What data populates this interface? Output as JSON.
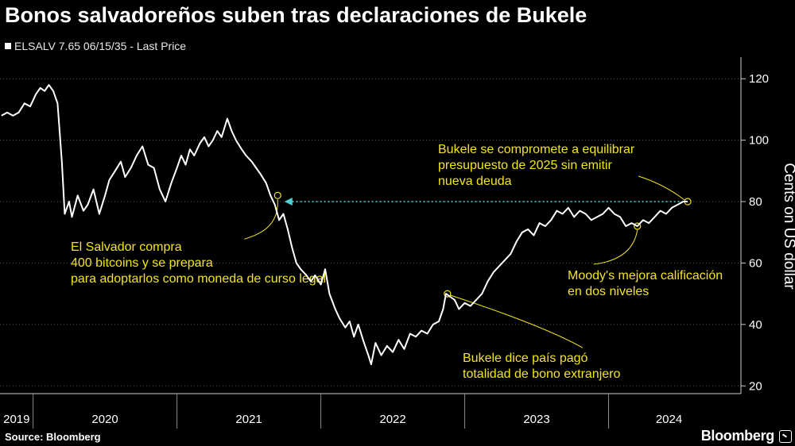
{
  "title": "Bonos salvadoreños suben tras declaraciones de Bukele",
  "legend": "ELSALV 7.65 06/15/35 - Last Price",
  "source": "Source: Bloomberg",
  "brand": "Bloomberg",
  "chart_data": {
    "type": "line",
    "ylabel": "Cents on US dollar",
    "ylim": [
      18,
      126
    ],
    "yticks": [
      20,
      40,
      60,
      80,
      100,
      120
    ],
    "xlabels": [
      "2019",
      "2020",
      "2021",
      "2022",
      "2023",
      "2024"
    ],
    "grid": "horizontal dotted",
    "series": [
      {
        "name": "ELSALV 7.65 06/15/35",
        "color": "#ffffff",
        "values": [
          [
            2019.78,
            108
          ],
          [
            2019.82,
            109
          ],
          [
            2019.86,
            108
          ],
          [
            2019.9,
            109
          ],
          [
            2019.94,
            112
          ],
          [
            2019.98,
            111
          ],
          [
            2020.02,
            115
          ],
          [
            2020.05,
            117
          ],
          [
            2020.08,
            116
          ],
          [
            2020.11,
            118
          ],
          [
            2020.14,
            116
          ],
          [
            2020.17,
            112
          ],
          [
            2020.2,
            93
          ],
          [
            2020.22,
            76
          ],
          [
            2020.25,
            80
          ],
          [
            2020.27,
            75
          ],
          [
            2020.31,
            82
          ],
          [
            2020.35,
            77
          ],
          [
            2020.38,
            79
          ],
          [
            2020.42,
            84
          ],
          [
            2020.46,
            76
          ],
          [
            2020.5,
            82
          ],
          [
            2020.53,
            87
          ],
          [
            2020.57,
            90
          ],
          [
            2020.61,
            93
          ],
          [
            2020.64,
            88
          ],
          [
            2020.68,
            91
          ],
          [
            2020.72,
            95
          ],
          [
            2020.76,
            98
          ],
          [
            2020.8,
            92
          ],
          [
            2020.84,
            91
          ],
          [
            2020.88,
            84
          ],
          [
            2020.92,
            80
          ],
          [
            2020.96,
            86
          ],
          [
            2021.0,
            91
          ],
          [
            2021.03,
            95
          ],
          [
            2021.06,
            92
          ],
          [
            2021.09,
            97
          ],
          [
            2021.12,
            95
          ],
          [
            2021.16,
            99
          ],
          [
            2021.19,
            101
          ],
          [
            2021.22,
            98
          ],
          [
            2021.25,
            100
          ],
          [
            2021.28,
            103
          ],
          [
            2021.31,
            101
          ],
          [
            2021.35,
            107
          ],
          [
            2021.38,
            103
          ],
          [
            2021.41,
            100
          ],
          [
            2021.45,
            97
          ],
          [
            2021.48,
            95
          ],
          [
            2021.52,
            93
          ],
          [
            2021.55,
            91
          ],
          [
            2021.58,
            89
          ],
          [
            2021.62,
            86
          ],
          [
            2021.65,
            82
          ],
          [
            2021.68,
            79
          ],
          [
            2021.71,
            74
          ],
          [
            2021.74,
            76
          ],
          [
            2021.77,
            71
          ],
          [
            2021.8,
            65
          ],
          [
            2021.83,
            60
          ],
          [
            2021.86,
            58
          ],
          [
            2021.9,
            56
          ],
          [
            2021.93,
            54
          ],
          [
            2021.96,
            56
          ],
          [
            2022.0,
            53
          ],
          [
            2022.03,
            58
          ],
          [
            2022.06,
            50
          ],
          [
            2022.1,
            45
          ],
          [
            2022.13,
            42
          ],
          [
            2022.17,
            39
          ],
          [
            2022.2,
            41
          ],
          [
            2022.23,
            36
          ],
          [
            2022.26,
            40
          ],
          [
            2022.3,
            34
          ],
          [
            2022.33,
            30
          ],
          [
            2022.35,
            27
          ],
          [
            2022.38,
            34
          ],
          [
            2022.42,
            30
          ],
          [
            2022.46,
            33
          ],
          [
            2022.5,
            31
          ],
          [
            2022.54,
            35
          ],
          [
            2022.58,
            32
          ],
          [
            2022.62,
            37
          ],
          [
            2022.66,
            36
          ],
          [
            2022.7,
            38
          ],
          [
            2022.74,
            37
          ],
          [
            2022.78,
            40
          ],
          [
            2022.82,
            41
          ],
          [
            2022.85,
            45
          ],
          [
            2022.87,
            50
          ],
          [
            2022.9,
            49
          ],
          [
            2022.93,
            48
          ],
          [
            2022.96,
            45
          ],
          [
            2023.0,
            47
          ],
          [
            2023.04,
            46
          ],
          [
            2023.08,
            48
          ],
          [
            2023.12,
            50
          ],
          [
            2023.16,
            54
          ],
          [
            2023.2,
            57
          ],
          [
            2023.24,
            59
          ],
          [
            2023.28,
            61
          ],
          [
            2023.32,
            63
          ],
          [
            2023.36,
            67
          ],
          [
            2023.4,
            70
          ],
          [
            2023.44,
            71
          ],
          [
            2023.48,
            69
          ],
          [
            2023.52,
            73
          ],
          [
            2023.56,
            72
          ],
          [
            2023.6,
            74
          ],
          [
            2023.64,
            77
          ],
          [
            2023.68,
            76
          ],
          [
            2023.72,
            78
          ],
          [
            2023.76,
            75
          ],
          [
            2023.8,
            77
          ],
          [
            2023.84,
            76
          ],
          [
            2023.88,
            74
          ],
          [
            2023.92,
            75
          ],
          [
            2023.96,
            76
          ],
          [
            2024.0,
            78
          ],
          [
            2024.04,
            76
          ],
          [
            2024.08,
            75
          ],
          [
            2024.12,
            72
          ],
          [
            2024.16,
            73
          ],
          [
            2024.2,
            72
          ],
          [
            2024.24,
            74
          ],
          [
            2024.28,
            73
          ],
          [
            2024.32,
            75
          ],
          [
            2024.36,
            77
          ],
          [
            2024.4,
            76
          ],
          [
            2024.44,
            78
          ],
          [
            2024.48,
            79
          ],
          [
            2024.52,
            80
          ],
          [
            2024.55,
            80
          ]
        ]
      }
    ],
    "annotations": [
      {
        "lines": [
          "El Salvador compra",
          "400 bitcoins y se prepara",
          "para adoptarlos como moneda de curso legal"
        ],
        "x": 2021.7,
        "y": 82
      },
      {
        "lines": [
          "Bukele dice país pagó",
          "totalidad de bono extranjero"
        ],
        "x": 2022.88,
        "y": 50
      },
      {
        "lines": [
          "Moody's mejora calificación",
          "en dos niveles"
        ],
        "x": 2024.2,
        "y": 72
      },
      {
        "lines": [
          "Bukele se compromete a equilibrar",
          "presupuesto de 2025 sin emitir",
          "nueva deuda"
        ],
        "x": 2024.55,
        "y": 80
      }
    ]
  }
}
